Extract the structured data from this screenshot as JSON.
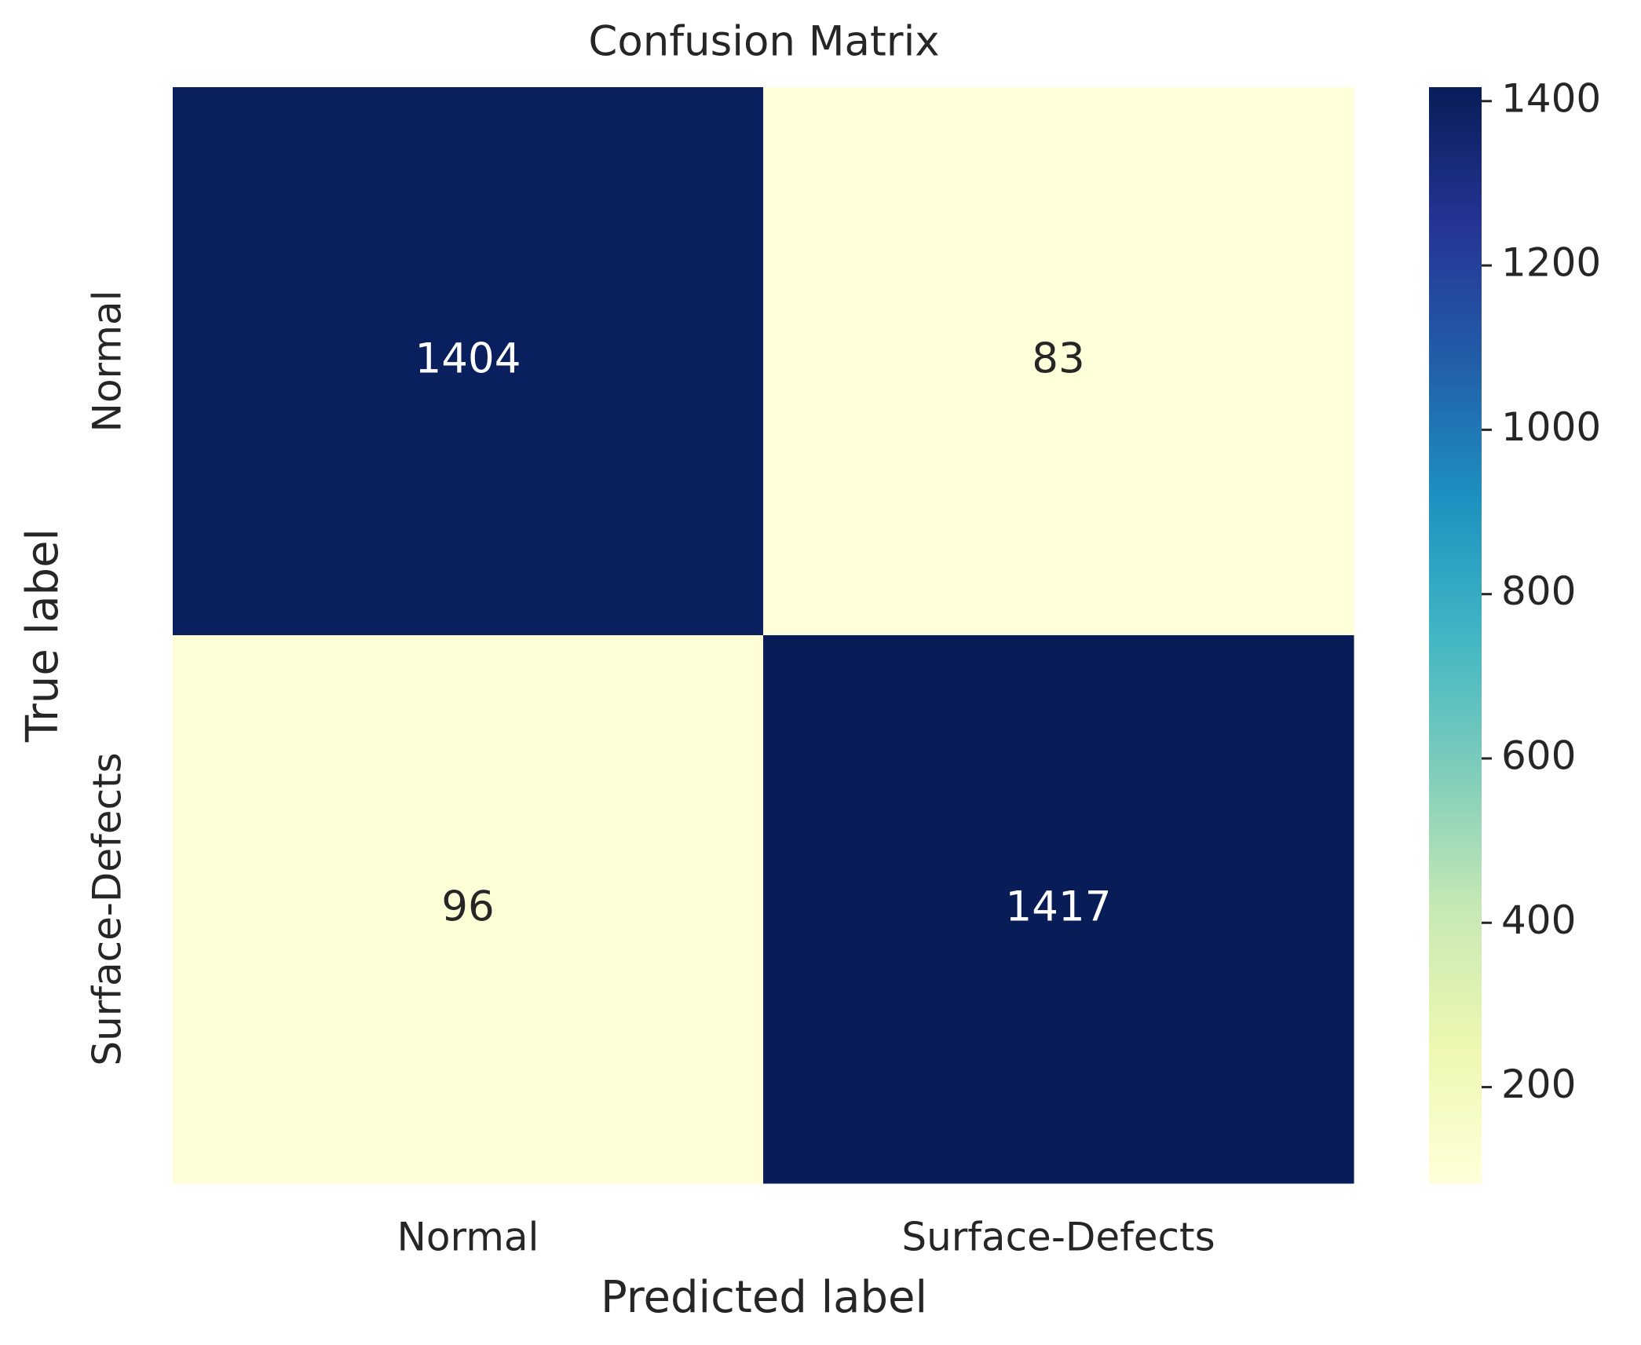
{
  "chart_data": {
    "type": "heatmap",
    "title": "Confusion Matrix",
    "x_label": "Predicted label",
    "y_label": "True label",
    "x_categories": [
      "Normal",
      "Surface-Defects"
    ],
    "y_categories": [
      "Normal",
      "Surface-Defects"
    ],
    "values": [
      [
        1404,
        83
      ],
      [
        96,
        1417
      ]
    ],
    "colormap": "YlGnBu",
    "clim": [
      83,
      1417
    ],
    "cticks": [
      200,
      400,
      600,
      800,
      1000,
      1200,
      1400
    ]
  }
}
